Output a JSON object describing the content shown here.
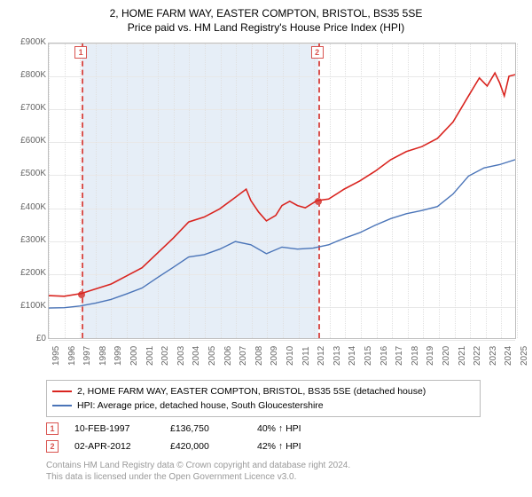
{
  "title": "2, HOME FARM WAY, EASTER COMPTON, BRISTOL, BS35 5SE",
  "subtitle": "Price paid vs. HM Land Registry's House Price Index (HPI)",
  "chart": {
    "plot_bg": "#ffffff",
    "shade_bg": "#e6eef7",
    "grid_color": "#e8e8e8",
    "border_color": "#bfbfbf",
    "axis_text_color": "#666666",
    "ylim": [
      0,
      900000
    ],
    "yticks": [
      0,
      100000,
      200000,
      300000,
      400000,
      500000,
      600000,
      700000,
      800000,
      900000
    ],
    "ytick_labels": [
      "£0",
      "£100K",
      "£200K",
      "£300K",
      "£400K",
      "£500K",
      "£600K",
      "£700K",
      "£800K",
      "£900K"
    ],
    "xlim": [
      1995,
      2025
    ],
    "xticks": [
      1995,
      1996,
      1997,
      1998,
      1999,
      2000,
      2001,
      2002,
      2003,
      2004,
      2005,
      2006,
      2007,
      2008,
      2009,
      2010,
      2011,
      2012,
      2013,
      2014,
      2015,
      2016,
      2017,
      2018,
      2019,
      2020,
      2021,
      2022,
      2023,
      2024,
      2025
    ],
    "shade_range": [
      1997.11,
      2012.25
    ],
    "series": [
      {
        "name": "price_paid",
        "color": "#d9241f",
        "label": "2, HOME FARM WAY, EASTER COMPTON, BRISTOL, BS35 5SE (detached house)",
        "line_width": 1.6,
        "data": [
          [
            1995.0,
            130000
          ],
          [
            1996.0,
            128000
          ],
          [
            1997.11,
            136750
          ],
          [
            1998.0,
            150000
          ],
          [
            1999.0,
            165000
          ],
          [
            2000.0,
            190000
          ],
          [
            2001.0,
            215000
          ],
          [
            2002.0,
            260000
          ],
          [
            2003.0,
            305000
          ],
          [
            2004.0,
            355000
          ],
          [
            2005.0,
            370000
          ],
          [
            2006.0,
            395000
          ],
          [
            2007.0,
            430000
          ],
          [
            2007.7,
            455000
          ],
          [
            2008.0,
            420000
          ],
          [
            2008.5,
            385000
          ],
          [
            2009.0,
            358000
          ],
          [
            2009.6,
            375000
          ],
          [
            2010.0,
            405000
          ],
          [
            2010.5,
            418000
          ],
          [
            2011.0,
            405000
          ],
          [
            2011.5,
            398000
          ],
          [
            2012.25,
            420000
          ],
          [
            2013.0,
            425000
          ],
          [
            2014.0,
            455000
          ],
          [
            2015.0,
            480000
          ],
          [
            2016.0,
            510000
          ],
          [
            2017.0,
            545000
          ],
          [
            2018.0,
            570000
          ],
          [
            2019.0,
            585000
          ],
          [
            2020.0,
            610000
          ],
          [
            2021.0,
            660000
          ],
          [
            2022.0,
            740000
          ],
          [
            2022.7,
            795000
          ],
          [
            2023.2,
            770000
          ],
          [
            2023.7,
            810000
          ],
          [
            2024.0,
            780000
          ],
          [
            2024.3,
            740000
          ],
          [
            2024.6,
            800000
          ],
          [
            2025.0,
            805000
          ]
        ]
      },
      {
        "name": "hpi",
        "color": "#4a74b8",
        "label": "HPI: Average price, detached house, South Gloucestershire",
        "line_width": 1.4,
        "data": [
          [
            1995.0,
            92000
          ],
          [
            1996.0,
            93000
          ],
          [
            1997.0,
            98000
          ],
          [
            1998.0,
            107000
          ],
          [
            1999.0,
            118000
          ],
          [
            2000.0,
            135000
          ],
          [
            2001.0,
            153000
          ],
          [
            2002.0,
            185000
          ],
          [
            2003.0,
            216000
          ],
          [
            2004.0,
            248000
          ],
          [
            2005.0,
            255000
          ],
          [
            2006.0,
            272000
          ],
          [
            2007.0,
            295000
          ],
          [
            2008.0,
            285000
          ],
          [
            2009.0,
            258000
          ],
          [
            2010.0,
            278000
          ],
          [
            2011.0,
            272000
          ],
          [
            2012.0,
            275000
          ],
          [
            2013.0,
            285000
          ],
          [
            2014.0,
            305000
          ],
          [
            2015.0,
            322000
          ],
          [
            2016.0,
            345000
          ],
          [
            2017.0,
            365000
          ],
          [
            2018.0,
            380000
          ],
          [
            2019.0,
            390000
          ],
          [
            2020.0,
            402000
          ],
          [
            2021.0,
            440000
          ],
          [
            2022.0,
            495000
          ],
          [
            2023.0,
            520000
          ],
          [
            2024.0,
            530000
          ],
          [
            2025.0,
            545000
          ]
        ]
      }
    ],
    "markers": [
      {
        "num": "1",
        "x": 1997.11,
        "y": 136750
      },
      {
        "num": "2",
        "x": 2012.25,
        "y": 420000
      }
    ]
  },
  "legend": {
    "rows": [
      {
        "color": "#d9241f",
        "label": "2, HOME FARM WAY, EASTER COMPTON, BRISTOL, BS35 5SE (detached house)"
      },
      {
        "color": "#4a74b8",
        "label": "HPI: Average price, detached house, South Gloucestershire"
      }
    ]
  },
  "transactions": [
    {
      "num": "1",
      "date": "10-FEB-1997",
      "price": "£136,750",
      "pct": "40% ↑ HPI"
    },
    {
      "num": "2",
      "date": "02-APR-2012",
      "price": "£420,000",
      "pct": "42% ↑ HPI"
    }
  ],
  "footer_line1": "Contains HM Land Registry data © Crown copyright and database right 2024.",
  "footer_line2": "This data is licensed under the Open Government Licence v3.0."
}
